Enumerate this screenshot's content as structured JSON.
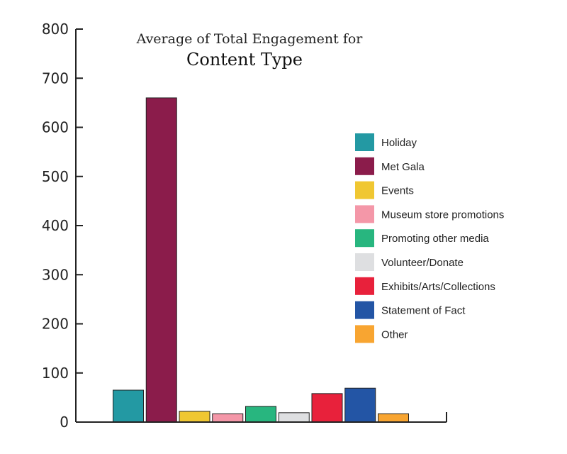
{
  "chart_data": {
    "type": "bar",
    "title": "Average of Total Engagement for",
    "subtitle": "Content Type",
    "xlabel": "",
    "ylabel": "",
    "ylim": [
      0,
      800
    ],
    "yticks": [
      0,
      100,
      200,
      300,
      400,
      500,
      600,
      700,
      800
    ],
    "grid": false,
    "legend_position": "right",
    "categories": [
      "Holiday",
      "Met Gala",
      "Events",
      "Museum store promotions",
      "Promoting other media",
      "Volunteer/Donate",
      "Exhibits/Arts/Collections",
      "Statement of Fact",
      "Other"
    ],
    "values": [
      65,
      660,
      22,
      17,
      32,
      19,
      58,
      69,
      17
    ],
    "colors": [
      "#2399a3",
      "#8b1c4b",
      "#f0c732",
      "#f497a8",
      "#28b67f",
      "#dedfe1",
      "#e8213b",
      "#2355a5",
      "#f8a531"
    ]
  }
}
